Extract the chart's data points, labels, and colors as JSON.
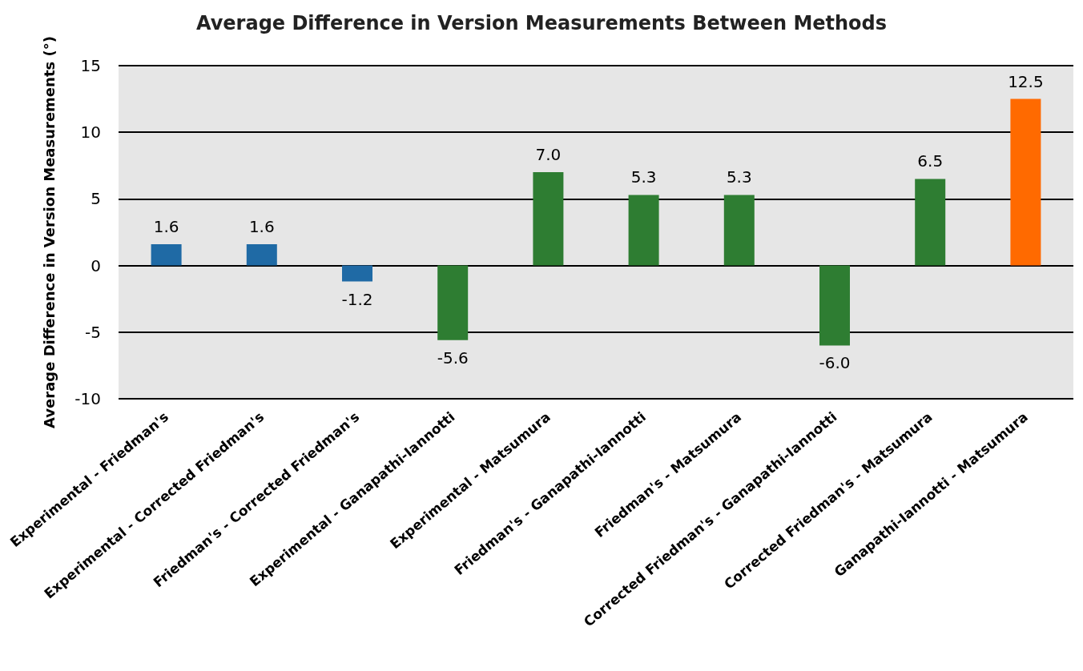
{
  "chart_data": {
    "type": "bar",
    "title": "Average Difference in Version Measurements Between Methods",
    "ylabel": "Average Difference in Version Measurements (°)",
    "categories": [
      "Experimental - Friedman's",
      "Experimental - Corrected Friedman's",
      "Friedman's - Corrected Friedman's",
      "Experimental - Ganapathi-Iannotti",
      "Experimental - Matsumura",
      "Friedman's - Ganapathi-Iannotti",
      "Friedman's - Matsumura",
      "Corrected Friedman's - Ganapathi-Iannotti",
      "Corrected Friedman's - Matsumura",
      "Ganapathi-Iannotti - Matsumura"
    ],
    "values": [
      1.6,
      1.6,
      -1.2,
      -5.6,
      7.0,
      5.3,
      5.3,
      -6.0,
      6.5,
      12.5
    ],
    "value_labels": [
      "1.6",
      "1.6",
      "-1.2",
      "-5.6",
      "7.0",
      "5.3",
      "5.3",
      "-6.0",
      "6.5",
      "12.5"
    ],
    "colors": [
      "#1f6aa5",
      "#1f6aa5",
      "#1f6aa5",
      "#2e7d32",
      "#2e7d32",
      "#2e7d32",
      "#2e7d32",
      "#2e7d32",
      "#2e7d32",
      "#ff6a00"
    ],
    "ylim": [
      -10,
      15
    ],
    "yticks": [
      -10,
      -5,
      0,
      5,
      10,
      15
    ],
    "grid": "y"
  }
}
